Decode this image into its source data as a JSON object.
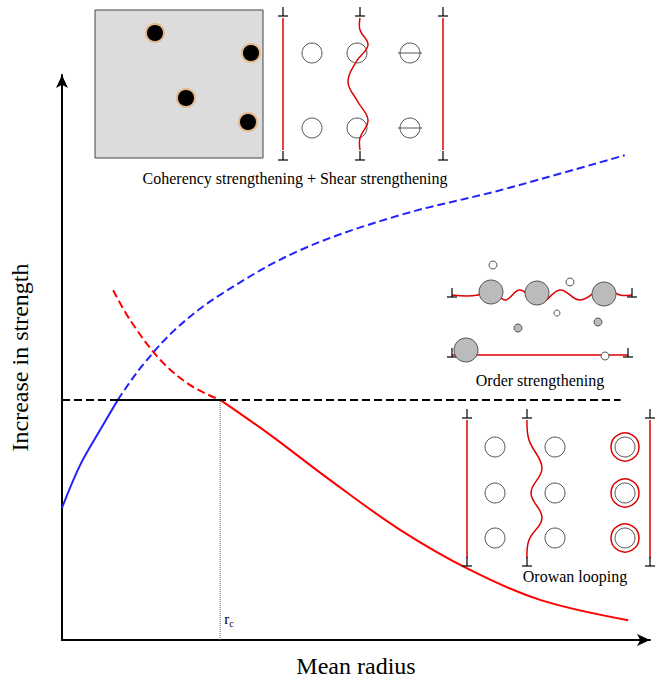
{
  "chart_data": {
    "type": "line",
    "xlabel": "Mean radius",
    "ylabel": "Increase in strength",
    "xlim": [
      0,
      100
    ],
    "ylim": [
      0,
      100
    ],
    "tick_labels": false,
    "grid": false,
    "annotations": [
      "Coherency strengthening + Shear strengthening",
      "Order strengthening",
      "Orowan looping"
    ],
    "series": [
      {
        "color": "#2222ff",
        "line_style": "solid",
        "x": [
          0,
          3.1,
          6.5,
          9.5
        ],
        "values": [
          23.4,
          31.0,
          37.2,
          42.5
        ]
      },
      {
        "color": "#2222ff",
        "line_style": "dashed",
        "x": [
          9.5,
          13.3,
          19.2,
          26.9,
          40.5,
          57.5,
          74.5,
          95.7
        ],
        "values": [
          42.5,
          48.1,
          54.9,
          61.1,
          69.0,
          75.2,
          79.6,
          85.8
        ]
      },
      {
        "color": "#ff0000",
        "line_style": "dashed",
        "x": [
          8.7,
          11.6,
          16.7,
          21.8,
          26.9
        ],
        "values": [
          61.9,
          56.6,
          49.6,
          45.1,
          42.5
        ]
      },
      {
        "color": "#ff0000",
        "line_style": "solid",
        "x": [
          26.9,
          35.4,
          45.6,
          57.5,
          69.4,
          81.3,
          96.3
        ],
        "values": [
          42.5,
          36.3,
          28.3,
          19.5,
          12.4,
          7.1,
          3.5
        ]
      },
      {
        "color": "#000000",
        "line_style": "dashed",
        "x": [
          0,
          95
        ],
        "values": [
          42.5,
          42.5
        ]
      },
      {
        "color": "#000000",
        "line_style": "solid",
        "x": [
          9.5,
          26.9
        ],
        "values": [
          42.5,
          42.5
        ]
      },
      {
        "color": "#666666",
        "line_style": "dotted",
        "label": "rc",
        "x": [
          26.9,
          26.9
        ],
        "values": [
          0,
          42.5
        ]
      }
    ]
  }
}
